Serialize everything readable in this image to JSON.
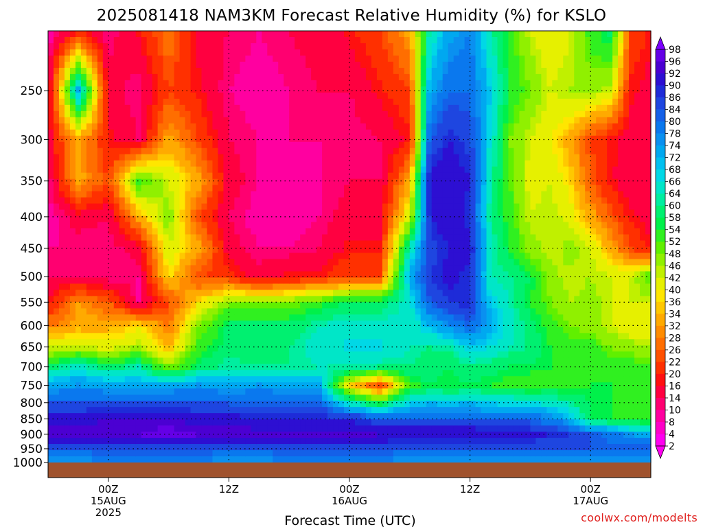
{
  "chart_data": {
    "type": "heatmap",
    "title": "2025081418 NAM3KM Forecast Relative Humidity (%) for KSLO",
    "xlabel": "Forecast Time (UTC)",
    "ylabel": "",
    "credit": "coolwx.com/modelts",
    "pressure_ticks": [
      "250",
      "300",
      "350",
      "400",
      "450",
      "500",
      "550",
      "600",
      "650",
      "700",
      "750",
      "800",
      "850",
      "900",
      "950",
      "1000"
    ],
    "time_ticks": [
      {
        "label": "00Z",
        "sub": "15AUG",
        "year": "2025",
        "hour": 6
      },
      {
        "label": "12Z",
        "sub": "",
        "year": "",
        "hour": 18
      },
      {
        "label": "00Z",
        "sub": "16AUG",
        "year": "",
        "hour": 30
      },
      {
        "label": "12Z",
        "sub": "",
        "year": "",
        "hour": 42
      },
      {
        "label": "00Z",
        "sub": "17AUG",
        "year": "",
        "hour": 54
      }
    ],
    "x_range_hours": [
      0,
      60
    ],
    "y_range_hpa": [
      200,
      1000
    ],
    "y_scale": "log",
    "grid": true,
    "ground_color": "#a0522d",
    "colorbar_levels": [
      98,
      96,
      92,
      90,
      86,
      84,
      80,
      78,
      74,
      72,
      68,
      66,
      64,
      60,
      58,
      54,
      52,
      48,
      46,
      42,
      40,
      36,
      34,
      32,
      28,
      26,
      22,
      20,
      16,
      14,
      10,
      8,
      4,
      2
    ],
    "colorbar_colors": [
      "#7b00ff",
      "#6400e6",
      "#4b00d2",
      "#2d0fd2",
      "#1e2bd8",
      "#1e46e0",
      "#1460e8",
      "#0a78ee",
      "#0a90f0",
      "#00a8f0",
      "#00c0f0",
      "#00d8e6",
      "#00e6c8",
      "#00eea0",
      "#00f070",
      "#00f04a",
      "#30f020",
      "#60f000",
      "#90f000",
      "#c0f000",
      "#e6f000",
      "#ffe600",
      "#ffc800",
      "#ffaa00",
      "#ff8c00",
      "#ff6e00",
      "#ff5000",
      "#ff3000",
      "#ff1010",
      "#ff0040",
      "#ff0070",
      "#ff00a0",
      "#ff00c8",
      "#ff00f0"
    ],
    "profiles": [
      {
        "hour": 0,
        "rh": [
          5,
          10,
          12,
          8,
          6,
          8,
          10,
          15,
          25,
          40,
          55,
          70,
          88,
          92,
          80,
          72
        ]
      },
      {
        "hour": 3,
        "rh": [
          15,
          70,
          30,
          30,
          12,
          8,
          10,
          28,
          30,
          40,
          62,
          72,
          88,
          92,
          80,
          72
        ]
      },
      {
        "hour": 6,
        "rh": [
          8,
          12,
          15,
          20,
          10,
          8,
          8,
          22,
          30,
          38,
          55,
          70,
          90,
          92,
          82,
          72
        ]
      },
      {
        "hour": 9,
        "rh": [
          15,
          8,
          10,
          50,
          30,
          12,
          8,
          8,
          35,
          42,
          60,
          70,
          90,
          92,
          82,
          74
        ]
      },
      {
        "hour": 12,
        "rh": [
          25,
          20,
          30,
          40,
          45,
          40,
          35,
          20,
          25,
          30,
          45,
          70,
          90,
          94,
          82,
          72
        ]
      },
      {
        "hour": 15,
        "rh": [
          12,
          15,
          20,
          30,
          20,
          30,
          20,
          35,
          45,
          50,
          55,
          72,
          88,
          92,
          82,
          72
        ]
      },
      {
        "hour": 18,
        "rh": [
          10,
          8,
          10,
          12,
          10,
          12,
          18,
          45,
          55,
          55,
          60,
          70,
          88,
          92,
          80,
          72
        ]
      },
      {
        "hour": 21,
        "rh": [
          8,
          6,
          8,
          8,
          6,
          8,
          12,
          45,
          55,
          55,
          58,
          72,
          86,
          92,
          80,
          72
        ]
      },
      {
        "hour": 24,
        "rh": [
          10,
          8,
          8,
          8,
          6,
          8,
          15,
          45,
          55,
          58,
          58,
          70,
          86,
          92,
          82,
          72
        ]
      },
      {
        "hour": 27,
        "rh": [
          12,
          10,
          8,
          8,
          8,
          10,
          15,
          50,
          60,
          62,
          60,
          70,
          86,
          92,
          82,
          72
        ]
      },
      {
        "hour": 30,
        "rh": [
          15,
          10,
          8,
          10,
          12,
          15,
          20,
          55,
          62,
          65,
          60,
          35,
          86,
          92,
          82,
          72
        ]
      },
      {
        "hour": 33,
        "rh": [
          20,
          15,
          10,
          10,
          12,
          15,
          20,
          55,
          62,
          65,
          58,
          20,
          80,
          90,
          82,
          72
        ]
      },
      {
        "hour": 36,
        "rh": [
          30,
          20,
          15,
          30,
          40,
          60,
          70,
          62,
          60,
          60,
          58,
          50,
          80,
          90,
          80,
          72
        ]
      },
      {
        "hour": 38,
        "rh": [
          60,
          70,
          80,
          88,
          86,
          82,
          84,
          80,
          68,
          58,
          56,
          54,
          80,
          90,
          80,
          72
        ]
      },
      {
        "hour": 40,
        "rh": [
          70,
          78,
          86,
          90,
          90,
          86,
          88,
          84,
          74,
          60,
          54,
          52,
          80,
          90,
          80,
          72
        ]
      },
      {
        "hour": 42,
        "rh": [
          74,
          78,
          82,
          86,
          84,
          88,
          84,
          86,
          78,
          66,
          58,
          54,
          80,
          90,
          80,
          72
        ]
      },
      {
        "hour": 44,
        "rh": [
          60,
          66,
          64,
          60,
          58,
          62,
          60,
          66,
          70,
          64,
          56,
          52,
          78,
          88,
          80,
          72
        ]
      },
      {
        "hour": 46,
        "rh": [
          50,
          52,
          46,
          48,
          50,
          52,
          58,
          60,
          62,
          60,
          54,
          50,
          78,
          88,
          80,
          72
        ]
      },
      {
        "hour": 48,
        "rh": [
          40,
          46,
          40,
          38,
          40,
          44,
          54,
          52,
          56,
          58,
          54,
          48,
          78,
          88,
          80,
          72
        ]
      },
      {
        "hour": 50,
        "rh": [
          36,
          40,
          36,
          40,
          42,
          40,
          44,
          46,
          50,
          52,
          52,
          50,
          74,
          86,
          80,
          72
        ]
      },
      {
        "hour": 52,
        "rh": [
          40,
          42,
          30,
          34,
          38,
          44,
          40,
          42,
          46,
          50,
          52,
          50,
          68,
          84,
          80,
          72
        ]
      },
      {
        "hour": 54,
        "rh": [
          50,
          44,
          20,
          22,
          30,
          40,
          42,
          44,
          44,
          50,
          52,
          52,
          54,
          80,
          80,
          72
        ]
      },
      {
        "hour": 56,
        "rh": [
          56,
          40,
          15,
          15,
          22,
          30,
          40,
          40,
          40,
          46,
          50,
          52,
          52,
          76,
          80,
          72
        ]
      },
      {
        "hour": 58,
        "rh": [
          20,
          15,
          12,
          10,
          15,
          20,
          40,
          40,
          36,
          44,
          50,
          52,
          50,
          72,
          80,
          72
        ]
      },
      {
        "hour": 60,
        "rh": [
          15,
          12,
          10,
          10,
          12,
          15,
          50,
          40,
          36,
          42,
          48,
          50,
          48,
          70,
          80,
          72
        ]
      }
    ],
    "profile_levels_hpa": [
      200,
      250,
      300,
      350,
      400,
      450,
      500,
      550,
      600,
      650,
      700,
      750,
      850,
      900,
      950,
      1000
    ]
  }
}
